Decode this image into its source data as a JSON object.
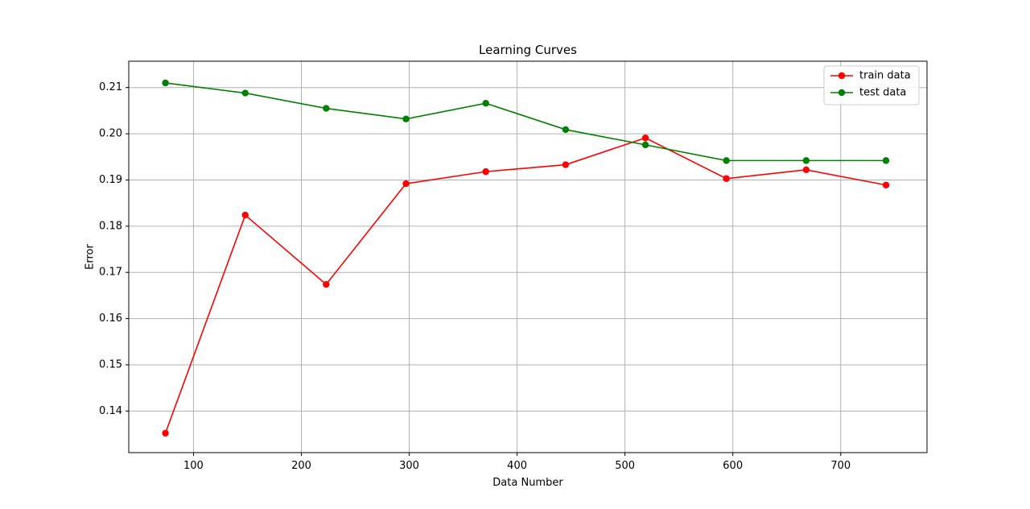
{
  "chart_data": {
    "type": "line",
    "title": "Learning Curves",
    "xlabel": "Data Number",
    "ylabel": "Error",
    "xlim": [
      40,
      780
    ],
    "ylim": [
      0.131,
      0.2157
    ],
    "xticks": [
      100,
      200,
      300,
      400,
      500,
      600,
      700
    ],
    "yticks": [
      0.14,
      0.15,
      0.16,
      0.17,
      0.18,
      0.19,
      0.2,
      0.21
    ],
    "ytick_labels": [
      "0.14",
      "0.15",
      "0.16",
      "0.17",
      "0.18",
      "0.19",
      "0.20",
      "0.21"
    ],
    "grid": true,
    "legend_position": "top-right",
    "x": [
      74,
      148,
      223,
      297,
      371,
      445,
      519,
      594,
      668,
      742
    ],
    "series": [
      {
        "name": "train data",
        "color": "#ff0000",
        "values": [
          0.1352,
          0.1824,
          0.1674,
          0.1892,
          0.1918,
          0.1933,
          0.1991,
          0.1903,
          0.1922,
          0.1889
        ]
      },
      {
        "name": "test data",
        "color": "#008000",
        "values": [
          0.211,
          0.2088,
          0.2055,
          0.2032,
          0.2066,
          0.2009,
          0.1976,
          0.1942,
          0.1942,
          0.1942
        ]
      }
    ]
  }
}
